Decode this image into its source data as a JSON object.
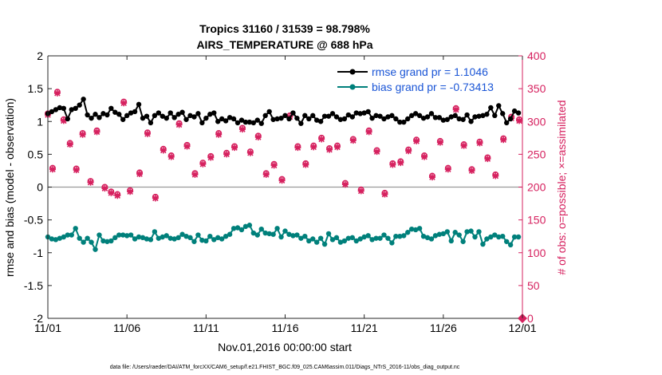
{
  "chart_data": {
    "type": "line",
    "title": "Tropics 31160 / 31539 = 98.798%",
    "subtitle": "AIRS_TEMPERATURE @ 688 hPa",
    "xlabel": "Nov.01,2016 00:00:00 start",
    "ylabel_left": "rmse and bias (model - observation)",
    "ylabel_right": "# of obs: o=possible; ×=assimilated",
    "footnote": "data file: /Users/raeder/DAI/ATM_forcXX/CAM6_setup/f.e21.FHIST_BGC.f09_025.CAM6assim.011/Diags_NTrS_2016-11/obs_diag_output.nc",
    "xlim": [
      0,
      30
    ],
    "ylim_left": [
      -2,
      2
    ],
    "ylim_right": [
      0,
      400
    ],
    "x_ticks": [
      0,
      5,
      10,
      15,
      20,
      25,
      30
    ],
    "x_tick_labels": [
      "11/01",
      "11/06",
      "11/11",
      "11/16",
      "11/21",
      "11/26",
      "12/01"
    ],
    "y_ticks_left": [
      -2,
      -1.5,
      -1,
      -0.5,
      0,
      0.5,
      1,
      1.5,
      2
    ],
    "y_tick_labels_left": [
      "-2",
      "-1.5",
      "-1",
      "-0.5",
      "0",
      "0.5",
      "1",
      "1.5",
      "2"
    ],
    "y_ticks_right": [
      0,
      50,
      100,
      150,
      200,
      250,
      300,
      350,
      400
    ],
    "y_tick_labels_right": [
      "0",
      "50",
      "100",
      "150",
      "200",
      "250",
      "300",
      "350",
      "400"
    ],
    "legend_position": "top-right",
    "x": [
      0.0,
      0.25,
      0.5,
      0.75,
      1.0,
      1.25,
      1.5,
      1.75,
      2.0,
      2.25,
      2.5,
      2.75,
      3.0,
      3.25,
      3.5,
      3.75,
      4.0,
      4.25,
      4.5,
      4.75,
      5.0,
      5.25,
      5.5,
      5.75,
      6.0,
      6.25,
      6.5,
      6.75,
      7.0,
      7.25,
      7.5,
      7.75,
      8.0,
      8.25,
      8.5,
      8.75,
      9.0,
      9.25,
      9.5,
      9.75,
      10.0,
      10.25,
      10.5,
      10.75,
      11.0,
      11.25,
      11.5,
      11.75,
      12.0,
      12.25,
      12.5,
      12.75,
      13.0,
      13.25,
      13.5,
      13.75,
      14.0,
      14.25,
      14.5,
      14.75,
      15.0,
      15.25,
      15.5,
      15.75,
      16.0,
      16.25,
      16.5,
      16.75,
      17.0,
      17.25,
      17.5,
      17.75,
      18.0,
      18.25,
      18.5,
      18.75,
      19.0,
      19.25,
      19.5,
      19.75,
      20.0,
      20.25,
      20.5,
      20.75,
      21.0,
      21.25,
      21.5,
      21.75,
      22.0,
      22.25,
      22.5,
      22.75,
      23.0,
      23.25,
      23.5,
      23.75,
      24.0,
      24.25,
      24.5,
      24.75,
      25.0,
      25.25,
      25.5,
      25.75,
      26.0,
      26.25,
      26.5,
      26.75,
      27.0,
      27.25,
      27.5,
      27.75,
      28.0,
      28.25,
      28.5,
      28.75,
      29.0,
      29.25,
      29.5,
      29.75
    ],
    "series": [
      {
        "name": "rmse grand pr = 1.1046",
        "axis": "left",
        "color": "#000000",
        "values": [
          1.12,
          1.15,
          1.18,
          1.21,
          1.2,
          1.04,
          1.18,
          1.2,
          1.25,
          1.34,
          1.1,
          1.05,
          1.11,
          1.06,
          1.12,
          1.1,
          1.2,
          1.14,
          1.11,
          1.03,
          1.09,
          1.13,
          1.15,
          1.26,
          1.05,
          1.08,
          0.98,
          1.09,
          1.13,
          1.08,
          1.05,
          1.13,
          1.06,
          1.11,
          1.14,
          1.03,
          1.09,
          1.07,
          1.12,
          0.98,
          1.05,
          1.11,
          1.13,
          1.0,
          1.04,
          1.01,
          1.06,
          1.04,
          0.98,
          1.02,
          0.99,
          0.99,
          0.98,
          1.02,
          0.97,
          1.09,
          1.15,
          1.03,
          1.04,
          1.05,
          1.09,
          1.04,
          1.13,
          1.05,
          0.97,
          1.09,
          1.04,
          1.09,
          1.02,
          1.0,
          1.08,
          1.08,
          1.12,
          1.07,
          1.03,
          1.04,
          1.1,
          1.07,
          1.13,
          1.12,
          1.13,
          1.15,
          1.05,
          1.09,
          1.08,
          1.04,
          1.07,
          1.09,
          1.04,
          0.99,
          0.99,
          1.04,
          1.09,
          1.12,
          1.09,
          1.05,
          1.07,
          1.12,
          1.06,
          1.06,
          1.02,
          1.03,
          1.07,
          1.09,
          1.04,
          1.03,
          1.1,
          1.0,
          1.07,
          1.08,
          1.09,
          1.11,
          1.21,
          1.09,
          1.24,
          1.12,
          0.98,
          1.04,
          1.16,
          1.13
        ]
      },
      {
        "name": "bias grand pr = -0.73413",
        "axis": "left",
        "color": "#00807b",
        "values": [
          -0.76,
          -0.79,
          -0.8,
          -0.78,
          -0.76,
          -0.73,
          -0.73,
          -0.63,
          -0.78,
          -0.84,
          -0.78,
          -0.84,
          -0.95,
          -0.73,
          -0.82,
          -0.83,
          -0.82,
          -0.77,
          -0.73,
          -0.73,
          -0.74,
          -0.73,
          -0.79,
          -0.76,
          -0.77,
          -0.79,
          -0.8,
          -0.68,
          -0.78,
          -0.76,
          -0.74,
          -0.78,
          -0.79,
          -0.77,
          -0.72,
          -0.75,
          -0.77,
          -0.83,
          -0.73,
          -0.81,
          -0.82,
          -0.75,
          -0.8,
          -0.77,
          -0.79,
          -0.75,
          -0.72,
          -0.63,
          -0.62,
          -0.65,
          -0.6,
          -0.58,
          -0.7,
          -0.73,
          -0.64,
          -0.7,
          -0.71,
          -0.72,
          -0.63,
          -0.76,
          -0.67,
          -0.72,
          -0.74,
          -0.73,
          -0.78,
          -0.75,
          -0.82,
          -0.79,
          -0.84,
          -0.78,
          -0.87,
          -0.71,
          -0.8,
          -0.77,
          -0.84,
          -0.82,
          -0.78,
          -0.77,
          -0.82,
          -0.79,
          -0.76,
          -0.74,
          -0.8,
          -0.78,
          -0.78,
          -0.73,
          -0.78,
          -0.85,
          -0.75,
          -0.75,
          -0.74,
          -0.69,
          -0.64,
          -0.65,
          -0.63,
          -0.75,
          -0.77,
          -0.79,
          -0.74,
          -0.72,
          -0.71,
          -0.68,
          -0.82,
          -0.69,
          -0.73,
          -0.83,
          -0.68,
          -0.67,
          -0.76,
          -0.68,
          -0.87,
          -0.79,
          -0.76,
          -0.73,
          -0.76,
          -0.75,
          -0.83,
          -0.88,
          -0.76,
          -0.76
        ]
      }
    ],
    "obs_series": [
      {
        "name": "possible",
        "marker": "circle",
        "axis": "right",
        "color": "#d6215f",
        "x": [
          0.0,
          0.3,
          0.6,
          1.0,
          1.4,
          1.8,
          2.2,
          2.7,
          3.1,
          3.6,
          4.0,
          4.4,
          4.8,
          5.2,
          5.8,
          6.3,
          6.8,
          7.3,
          7.8,
          8.3,
          8.8,
          9.3,
          9.8,
          10.3,
          10.8,
          11.3,
          11.8,
          12.3,
          12.8,
          13.3,
          13.8,
          14.3,
          14.8,
          15.3,
          15.8,
          16.3,
          16.8,
          17.3,
          17.8,
          18.3,
          18.8,
          19.3,
          19.8,
          20.3,
          20.8,
          21.3,
          21.8,
          22.3,
          22.8,
          23.3,
          23.8,
          24.3,
          24.8,
          25.3,
          25.8,
          26.3,
          26.8,
          27.3,
          27.8,
          28.3,
          28.8,
          29.3,
          29.8
        ],
        "y": [
          312,
          229,
          345,
          303,
          267,
          228,
          282,
          209,
          286,
          200,
          193,
          189,
          330,
          195,
          222,
          283,
          185,
          258,
          248,
          297,
          264,
          221,
          237,
          247,
          282,
          252,
          262,
          290,
          254,
          278,
          221,
          235,
          212,
          309,
          262,
          236,
          263,
          275,
          259,
          263,
          206,
          273,
          196,
          286,
          256,
          191,
          236,
          239,
          257,
          272,
          248,
          217,
          270,
          229,
          320,
          265,
          227,
          269,
          245,
          219,
          274,
          307,
          303
        ]
      },
      {
        "name": "assimilated",
        "marker": "x",
        "axis": "right",
        "color": "#d6215f",
        "x": [
          0.0,
          0.3,
          0.6,
          1.0,
          1.4,
          1.8,
          2.2,
          2.7,
          3.1,
          3.6,
          4.0,
          4.4,
          4.8,
          5.2,
          5.8,
          6.3,
          6.8,
          7.3,
          7.8,
          8.3,
          8.8,
          9.3,
          9.8,
          10.3,
          10.8,
          11.3,
          11.8,
          12.3,
          12.8,
          13.3,
          13.8,
          14.3,
          14.8,
          15.3,
          15.8,
          16.3,
          16.8,
          17.3,
          17.8,
          18.3,
          18.8,
          19.3,
          19.8,
          20.3,
          20.8,
          21.3,
          21.8,
          22.3,
          22.8,
          23.3,
          23.8,
          24.3,
          24.8,
          25.3,
          25.8,
          26.3,
          26.8,
          27.3,
          27.8,
          28.3,
          28.8,
          29.3,
          29.8
        ],
        "y": [
          310,
          227,
          343,
          301,
          265,
          226,
          280,
          207,
          284,
          198,
          191,
          187,
          328,
          193,
          220,
          281,
          183,
          256,
          246,
          295,
          262,
          219,
          235,
          245,
          280,
          250,
          260,
          288,
          252,
          276,
          219,
          233,
          210,
          307,
          260,
          234,
          261,
          273,
          257,
          261,
          204,
          271,
          194,
          284,
          254,
          189,
          234,
          237,
          255,
          270,
          246,
          215,
          268,
          227,
          318,
          263,
          225,
          267,
          243,
          217,
          272,
          305,
          301
        ]
      }
    ],
    "endpoint_marker": {
      "x": 30,
      "y": 0,
      "axis": "right",
      "marker": "diamond",
      "color": "#d6215f"
    }
  }
}
